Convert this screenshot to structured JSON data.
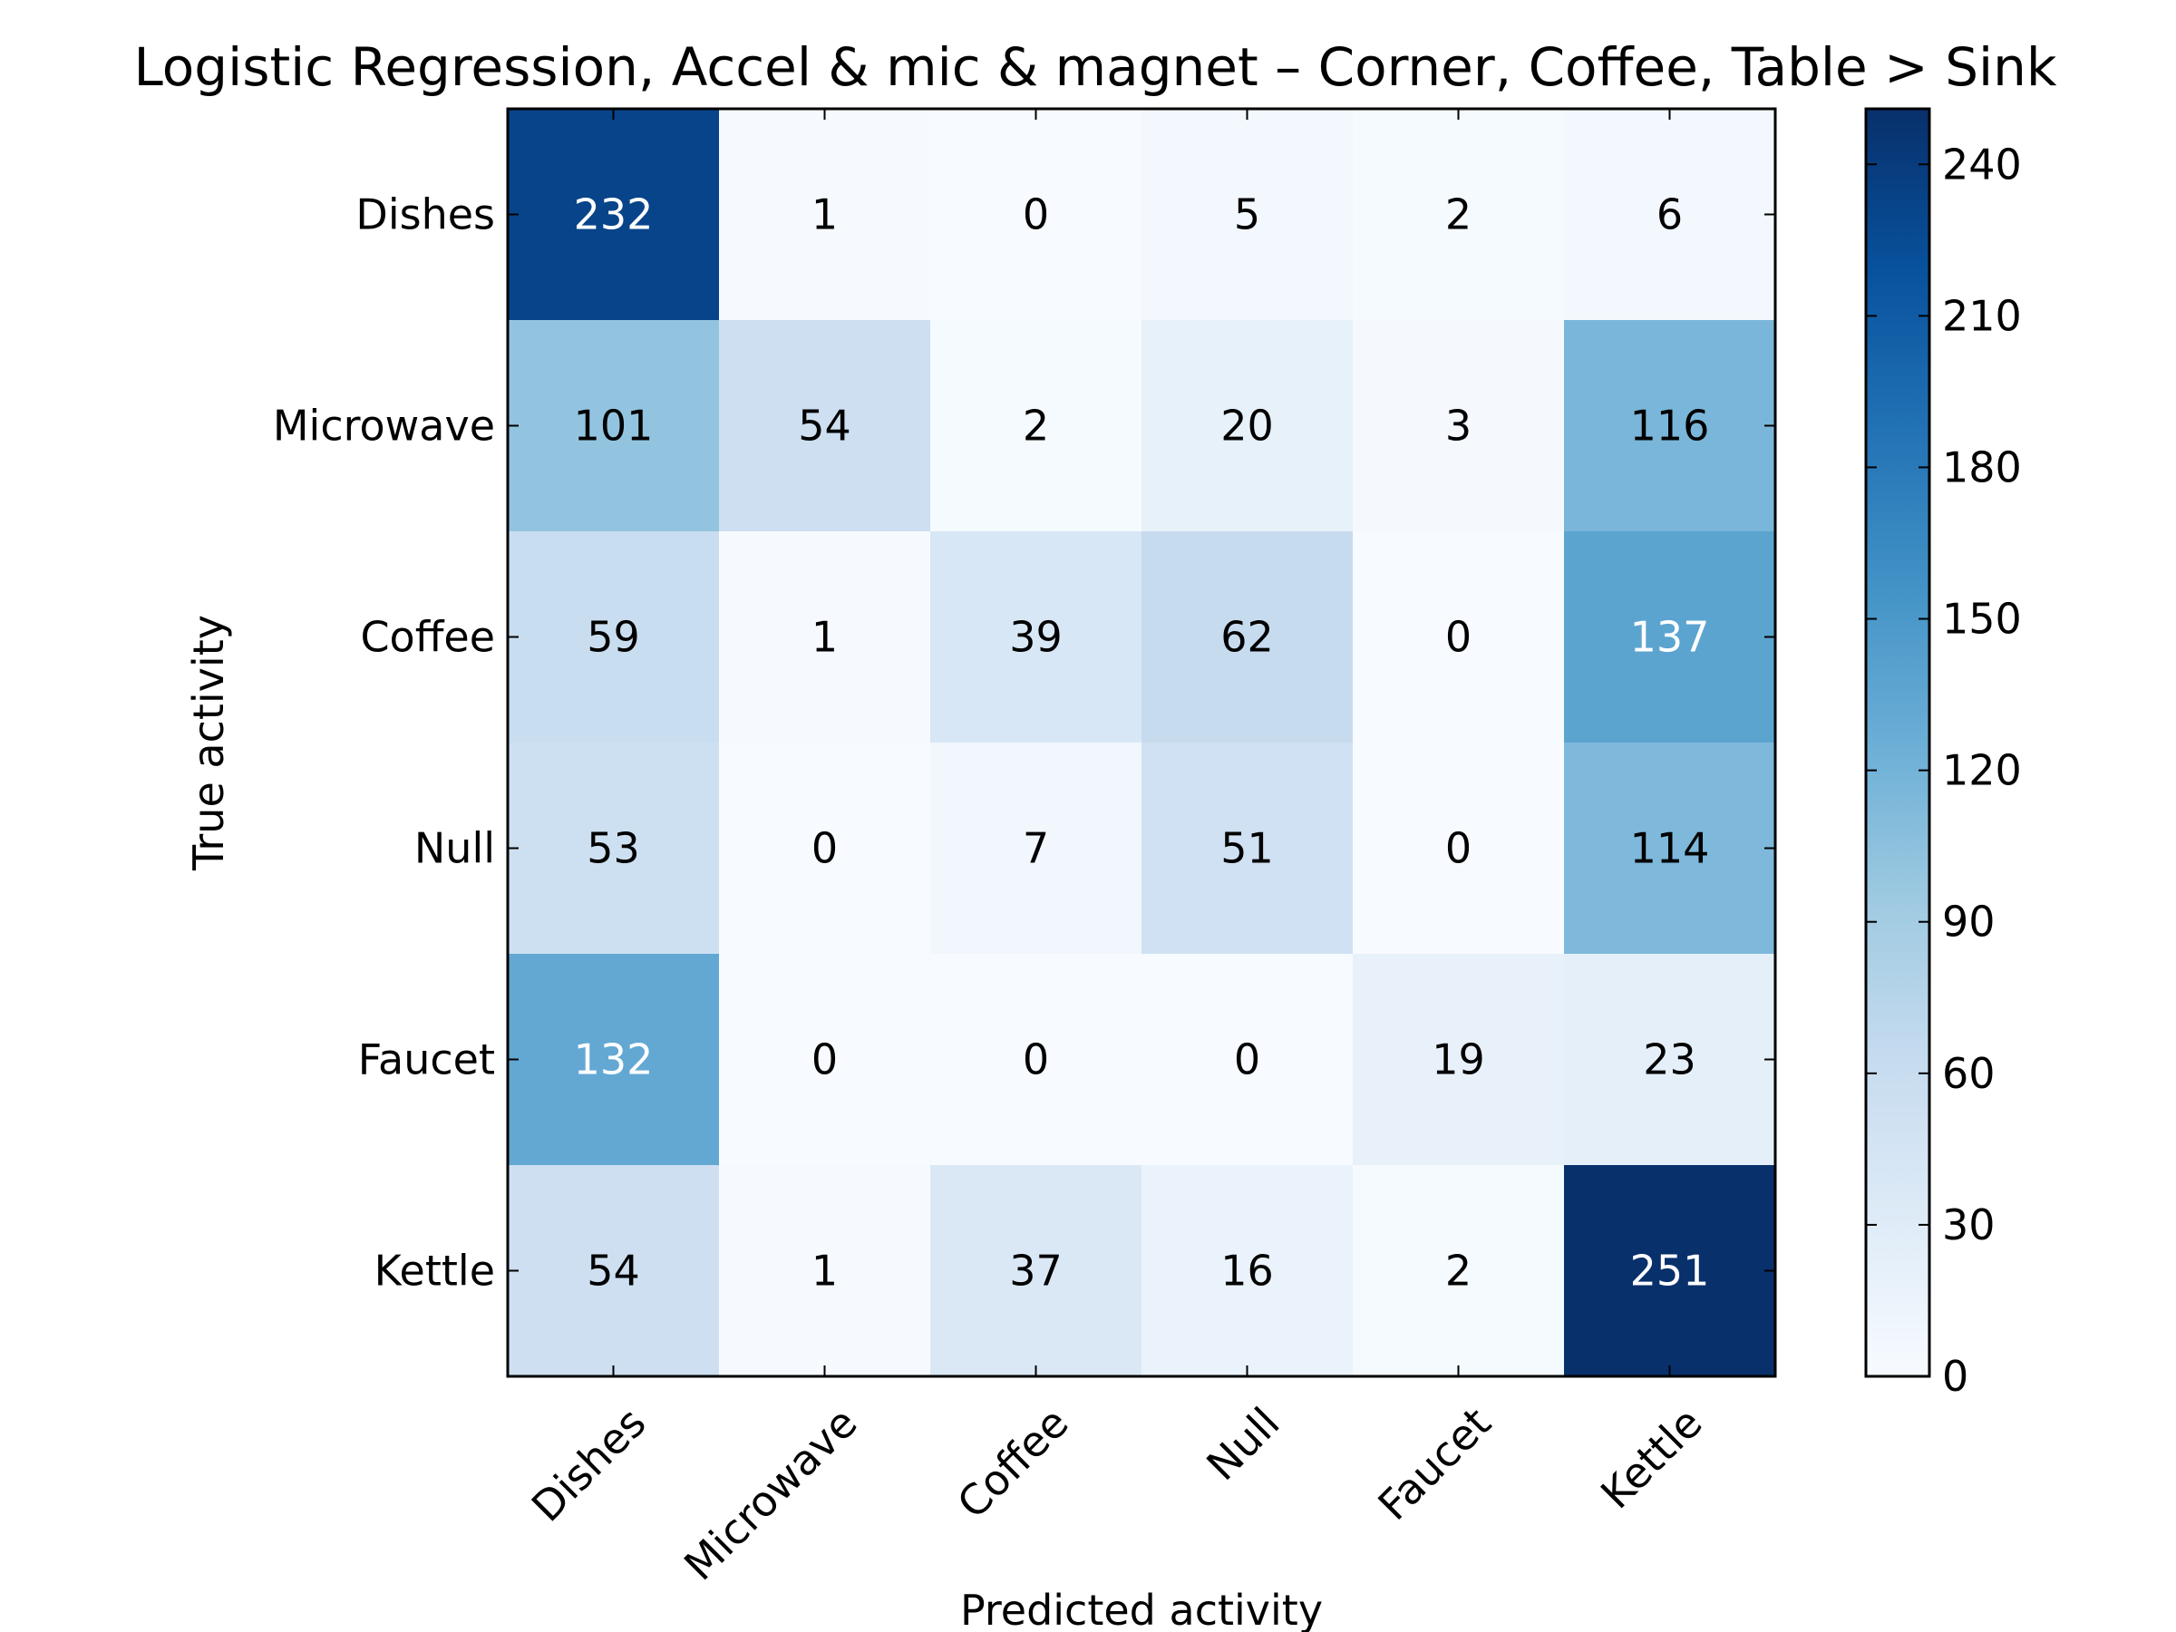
{
  "chart_data": {
    "type": "heatmap",
    "title": "Logistic Regression, Accel & mic & magnet – Corner, Coffee, Table > Sink",
    "xlabel": "Predicted activity",
    "ylabel": "True activity",
    "x_categories": [
      "Dishes",
      "Microwave",
      "Coffee",
      "Null",
      "Faucet",
      "Kettle"
    ],
    "y_categories": [
      "Dishes",
      "Microwave",
      "Coffee",
      "Null",
      "Faucet",
      "Kettle"
    ],
    "values": [
      [
        232,
        1,
        0,
        5,
        2,
        6
      ],
      [
        101,
        54,
        2,
        20,
        3,
        116
      ],
      [
        59,
        1,
        39,
        62,
        0,
        137
      ],
      [
        53,
        0,
        7,
        51,
        0,
        114
      ],
      [
        132,
        0,
        0,
        0,
        19,
        23
      ],
      [
        54,
        1,
        37,
        16,
        2,
        251
      ]
    ],
    "colorbar": {
      "colormap": "Blues",
      "vmin": 0,
      "vmax": 251,
      "ticks": [
        0,
        30,
        60,
        90,
        120,
        150,
        180,
        210,
        240
      ]
    },
    "grid": false,
    "legend": "none"
  }
}
